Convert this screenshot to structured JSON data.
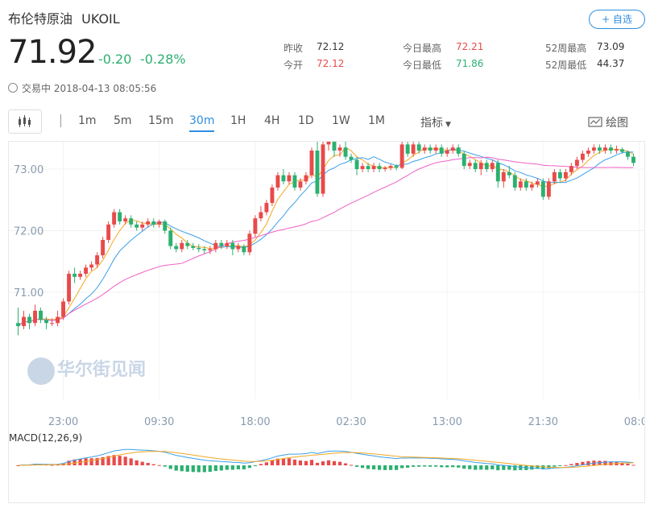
{
  "header": {
    "name": "布伦特原油",
    "code": "UKOIL",
    "add_button": "+ 自选",
    "price": "71.92",
    "change": "-0.20",
    "change_pct": "-0.28%",
    "status_time": "交易中 2018-04-13 08:05:56"
  },
  "stats": {
    "prev_close_label": "昨收",
    "prev_close": "72.12",
    "open_label": "今开",
    "open": "72.12",
    "high_label": "今日最高",
    "high": "72.21",
    "low_label": "今日最低",
    "low": "71.86",
    "w52_high_label": "52周最高",
    "w52_high": "73.09",
    "w52_low_label": "52周最低",
    "w52_low": "44.37"
  },
  "toolbar": {
    "intervals": [
      "1m",
      "5m",
      "15m",
      "30m",
      "1H",
      "4H",
      "1D",
      "1W",
      "1M"
    ],
    "active": "30m",
    "indicator_label": "指标",
    "draw_label": "绘图"
  },
  "watermark": "华尔街见闻",
  "colors": {
    "up": "#e84a4a",
    "down": "#2bb070",
    "accent": "#2f8ee0",
    "ma1": "#f5a623",
    "ma2": "#3aa0e8",
    "ma3": "#f060c8",
    "macd_dif": "#3aa0e8",
    "macd_dea": "#f5a623"
  },
  "chart_data": {
    "type": "candlestick",
    "ylim": [
      70.0,
      73.3
    ],
    "y_ticks": [
      "73.00",
      "72.00",
      "71.00"
    ],
    "y_tick_values": [
      73.0,
      72.0,
      71.0
    ],
    "x_ticks": [
      "23:00",
      "09:30",
      "18:00",
      "02:30",
      "13:00",
      "21:30",
      "08:00"
    ],
    "x_tick_index": [
      8,
      25,
      42,
      59,
      76,
      93,
      110
    ],
    "candles": [
      [
        70.5,
        70.45,
        70.3,
        70.75
      ],
      [
        70.45,
        70.6,
        70.4,
        70.7
      ],
      [
        70.6,
        70.5,
        70.4,
        70.65
      ],
      [
        70.5,
        70.7,
        70.45,
        70.8
      ],
      [
        70.7,
        70.55,
        70.5,
        70.75
      ],
      [
        70.55,
        70.5,
        70.4,
        70.6
      ],
      [
        70.5,
        70.5,
        70.45,
        70.58
      ],
      [
        70.5,
        70.6,
        70.45,
        70.7
      ],
      [
        70.6,
        70.85,
        70.55,
        70.9
      ],
      [
        70.85,
        71.3,
        70.8,
        71.35
      ],
      [
        71.3,
        71.25,
        71.15,
        71.4
      ],
      [
        71.25,
        71.3,
        71.2,
        71.35
      ],
      [
        71.3,
        71.4,
        71.25,
        71.45
      ],
      [
        71.4,
        71.45,
        71.35,
        71.5
      ],
      [
        71.45,
        71.6,
        71.4,
        71.65
      ],
      [
        71.6,
        71.85,
        71.55,
        71.9
      ],
      [
        71.85,
        72.1,
        71.8,
        72.15
      ],
      [
        72.1,
        72.3,
        72.05,
        72.35
      ],
      [
        72.3,
        72.15,
        72.1,
        72.35
      ],
      [
        72.15,
        72.2,
        72.1,
        72.25
      ],
      [
        72.2,
        72.1,
        72.05,
        72.25
      ],
      [
        72.1,
        72.05,
        72.0,
        72.15
      ],
      [
        72.05,
        72.1,
        72.0,
        72.15
      ],
      [
        72.1,
        72.15,
        72.05,
        72.2
      ],
      [
        72.15,
        72.1,
        72.05,
        72.2
      ],
      [
        72.1,
        72.15,
        72.05,
        72.18
      ],
      [
        72.15,
        72.0,
        71.95,
        72.18
      ],
      [
        72.0,
        71.75,
        71.7,
        72.05
      ],
      [
        71.75,
        71.7,
        71.65,
        71.8
      ],
      [
        71.7,
        71.8,
        71.65,
        71.85
      ],
      [
        71.8,
        71.75,
        71.7,
        71.85
      ],
      [
        71.75,
        71.72,
        71.68,
        71.8
      ],
      [
        71.72,
        71.7,
        71.65,
        71.78
      ],
      [
        71.7,
        71.68,
        71.62,
        71.75
      ],
      [
        71.68,
        71.7,
        71.62,
        71.75
      ],
      [
        71.7,
        71.8,
        71.65,
        71.85
      ],
      [
        71.8,
        71.75,
        71.7,
        71.85
      ],
      [
        71.75,
        71.8,
        71.7,
        71.85
      ],
      [
        71.8,
        71.7,
        71.6,
        71.85
      ],
      [
        71.7,
        71.75,
        71.65,
        71.8
      ],
      [
        71.75,
        71.65,
        71.6,
        71.78
      ],
      [
        71.65,
        71.95,
        71.6,
        72.0
      ],
      [
        71.95,
        72.2,
        71.9,
        72.25
      ],
      [
        72.2,
        72.3,
        72.15,
        72.4
      ],
      [
        72.3,
        72.45,
        72.25,
        72.5
      ],
      [
        72.45,
        72.7,
        72.4,
        72.75
      ],
      [
        72.7,
        72.9,
        72.65,
        72.95
      ],
      [
        72.9,
        72.8,
        72.75,
        73.0
      ],
      [
        72.8,
        72.9,
        72.75,
        72.95
      ],
      [
        72.9,
        72.7,
        72.65,
        72.95
      ],
      [
        72.7,
        72.8,
        72.65,
        72.85
      ],
      [
        72.8,
        72.9,
        72.75,
        72.95
      ],
      [
        72.9,
        73.3,
        72.85,
        73.35
      ],
      [
        73.3,
        72.6,
        72.55,
        73.7
      ],
      [
        72.6,
        73.4,
        72.55,
        73.45
      ],
      [
        73.4,
        73.5,
        73.3,
        73.55
      ],
      [
        73.5,
        73.3,
        73.2,
        73.55
      ],
      [
        73.3,
        73.35,
        73.2,
        73.4
      ],
      [
        73.35,
        73.2,
        73.15,
        73.45
      ],
      [
        73.2,
        73.15,
        73.1,
        73.25
      ],
      [
        73.15,
        73.0,
        72.9,
        73.2
      ],
      [
        73.0,
        73.05,
        72.95,
        73.1
      ],
      [
        73.05,
        73.0,
        72.95,
        73.1
      ],
      [
        73.0,
        73.05,
        72.95,
        73.1
      ],
      [
        73.05,
        73.0,
        72.95,
        73.1
      ],
      [
        73.0,
        73.02,
        72.96,
        73.05
      ],
      [
        73.02,
        73.05,
        72.98,
        73.08
      ],
      [
        73.05,
        73.02,
        72.98,
        73.08
      ],
      [
        73.02,
        73.4,
        73.0,
        73.45
      ],
      [
        73.4,
        73.25,
        73.2,
        73.45
      ],
      [
        73.25,
        73.4,
        73.2,
        73.45
      ],
      [
        73.4,
        73.3,
        73.25,
        73.45
      ],
      [
        73.3,
        73.35,
        73.25,
        73.4
      ],
      [
        73.35,
        73.3,
        73.25,
        73.4
      ],
      [
        73.3,
        73.35,
        73.25,
        73.4
      ],
      [
        73.35,
        73.25,
        73.2,
        73.4
      ],
      [
        73.25,
        73.3,
        73.2,
        73.35
      ],
      [
        73.3,
        73.35,
        73.25,
        73.4
      ],
      [
        73.35,
        73.25,
        73.2,
        73.4
      ],
      [
        73.25,
        73.05,
        73.0,
        73.3
      ],
      [
        73.05,
        73.1,
        73.0,
        73.15
      ],
      [
        73.1,
        73.0,
        72.95,
        73.15
      ],
      [
        73.0,
        73.1,
        72.9,
        73.15
      ],
      [
        73.1,
        73.0,
        72.95,
        73.15
      ],
      [
        73.0,
        73.1,
        72.95,
        73.15
      ],
      [
        73.1,
        72.8,
        72.7,
        73.15
      ],
      [
        72.8,
        72.95,
        72.7,
        73.0
      ],
      [
        72.95,
        72.9,
        72.85,
        73.05
      ],
      [
        72.9,
        72.7,
        72.65,
        72.95
      ],
      [
        72.7,
        72.8,
        72.65,
        72.85
      ],
      [
        72.8,
        72.7,
        72.65,
        72.85
      ],
      [
        72.7,
        72.75,
        72.65,
        72.8
      ],
      [
        72.75,
        72.8,
        72.7,
        72.85
      ],
      [
        72.8,
        72.55,
        72.5,
        72.85
      ],
      [
        72.55,
        72.8,
        72.5,
        72.85
      ],
      [
        72.8,
        72.95,
        72.75,
        73.0
      ],
      [
        72.95,
        72.85,
        72.8,
        73.0
      ],
      [
        72.85,
        72.95,
        72.8,
        73.0
      ],
      [
        72.95,
        73.05,
        72.9,
        73.1
      ],
      [
        73.05,
        73.15,
        73.0,
        73.2
      ],
      [
        73.15,
        73.25,
        73.1,
        73.3
      ],
      [
        73.25,
        73.3,
        73.2,
        73.35
      ],
      [
        73.3,
        73.35,
        73.25,
        73.4
      ],
      [
        73.35,
        73.3,
        73.25,
        73.4
      ],
      [
        73.3,
        73.35,
        73.25,
        73.4
      ],
      [
        73.35,
        73.3,
        73.25,
        73.4
      ],
      [
        73.3,
        73.32,
        73.25,
        73.38
      ],
      [
        73.32,
        73.28,
        73.25,
        73.35
      ],
      [
        73.28,
        73.2,
        73.15,
        73.3
      ],
      [
        73.2,
        73.1,
        73.05,
        73.25
      ]
    ],
    "macd_label": "MACD(12,26,9)"
  }
}
